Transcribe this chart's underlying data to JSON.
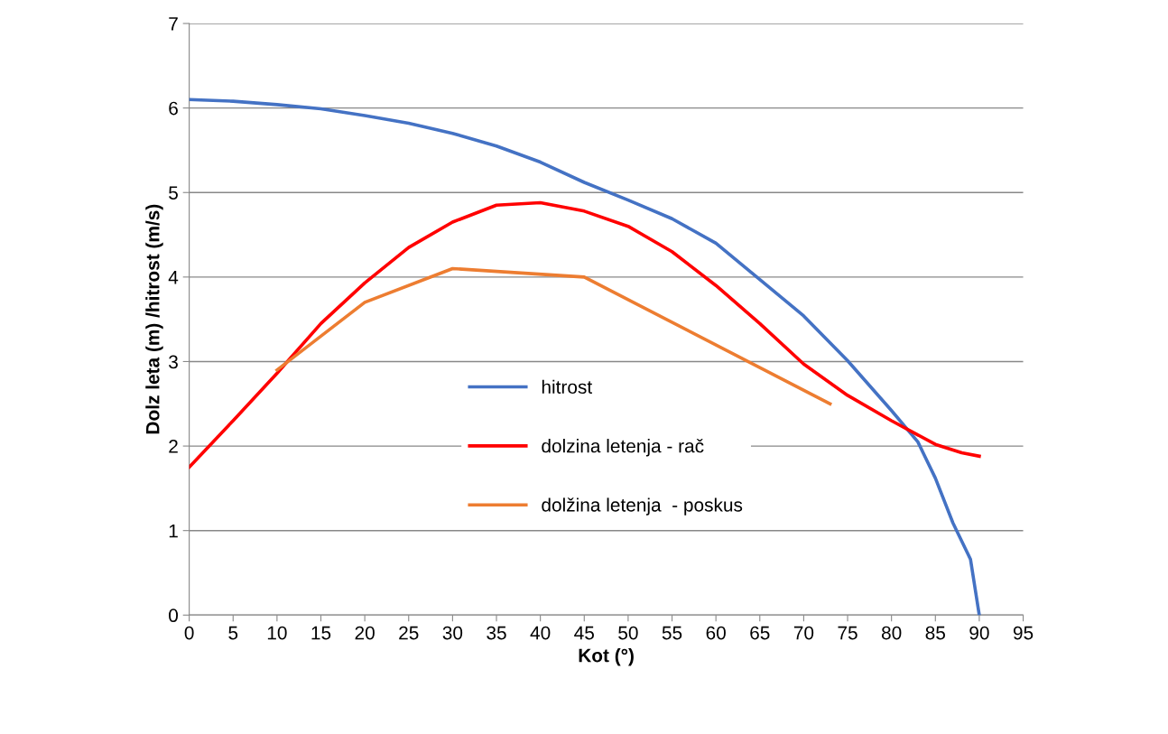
{
  "chart_data": {
    "type": "line",
    "xlabel": "Kot (°)",
    "ylabel": "Dolz leta (m) /hitrost (m/s)",
    "xlim": [
      0,
      95
    ],
    "xticks": [
      0,
      5,
      10,
      15,
      20,
      25,
      30,
      35,
      40,
      45,
      50,
      55,
      60,
      65,
      70,
      75,
      80,
      85,
      90,
      95
    ],
    "ylim": [
      0,
      7
    ],
    "yticks": [
      0,
      1,
      2,
      3,
      4,
      5,
      6,
      7
    ],
    "grid": "y",
    "legend": "lower center",
    "marker": "none",
    "line_style": "solid",
    "series": [
      {
        "name": "hitrost",
        "color": "#4472c4",
        "x": [
          0,
          5,
          10,
          15,
          20,
          25,
          30,
          35,
          40,
          45,
          50,
          55,
          60,
          65,
          70,
          75,
          80,
          83,
          85,
          87,
          89,
          90
        ],
        "values": [
          6.1,
          6.08,
          6.04,
          5.99,
          5.91,
          5.82,
          5.7,
          5.55,
          5.36,
          5.12,
          4.91,
          4.69,
          4.4,
          3.97,
          3.54,
          3.01,
          2.42,
          2.05,
          1.62,
          1.09,
          0.66,
          0
        ]
      },
      {
        "name": "dolzina letenja - rač",
        "color": "#ff0000",
        "x": [
          0,
          5,
          10,
          15,
          20,
          25,
          30,
          35,
          40,
          45,
          50,
          55,
          60,
          65,
          70,
          75,
          80,
          85,
          88,
          90
        ],
        "values": [
          1.75,
          2.3,
          2.86,
          3.45,
          3.93,
          4.35,
          4.65,
          4.85,
          4.88,
          4.78,
          4.6,
          4.3,
          3.9,
          3.45,
          2.97,
          2.6,
          2.3,
          2.02,
          1.92,
          1.88
        ]
      },
      {
        "name": "dolžina letenja  - poskus",
        "color": "#ed7d31",
        "x": [
          10,
          20,
          30,
          45,
          73
        ],
        "values": [
          2.9,
          3.7,
          4.1,
          4.0,
          2.5
        ]
      }
    ]
  }
}
